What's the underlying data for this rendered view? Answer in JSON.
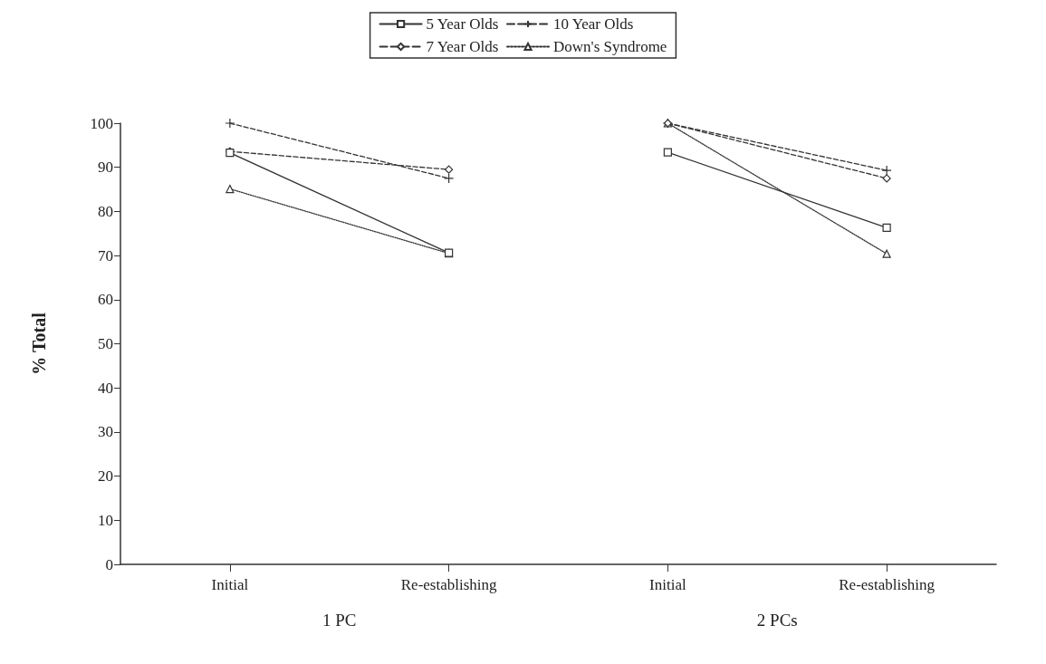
{
  "chart_data": {
    "type": "line",
    "ylabel": "% Total",
    "categories": [
      "Initial",
      "Re-establishing",
      "Initial",
      "Re-establishing"
    ],
    "annotations": [
      "1 PC",
      "2 PCs"
    ],
    "series": [
      {
        "name": "5 Year Olds",
        "color": "#333333",
        "marker": "square",
        "line_style": "solid",
        "values": [
          93.3,
          70.6,
          93.4,
          76.3
        ]
      },
      {
        "name": "7 Year Olds",
        "color": "#333333",
        "marker": "diamond",
        "line_style": "dashed",
        "values": [
          93.6,
          89.5,
          100,
          87.5
        ]
      },
      {
        "name": "10 Year Olds",
        "color": "#333333",
        "marker": "cross",
        "line_style": "dashed",
        "values": [
          100,
          87.5,
          100,
          89.3
        ]
      },
      {
        "name": "Down's Syndrome",
        "color": "#333333",
        "marker": "triangle",
        "line_style": "dotted",
        "values": [
          85.1,
          70.5,
          100,
          70.4
        ]
      }
    ],
    "ylim": [
      0,
      100
    ],
    "yticks": [
      0,
      10,
      20,
      30,
      40,
      50,
      60,
      70,
      80,
      90,
      100
    ],
    "grid": false,
    "legend": "top"
  }
}
